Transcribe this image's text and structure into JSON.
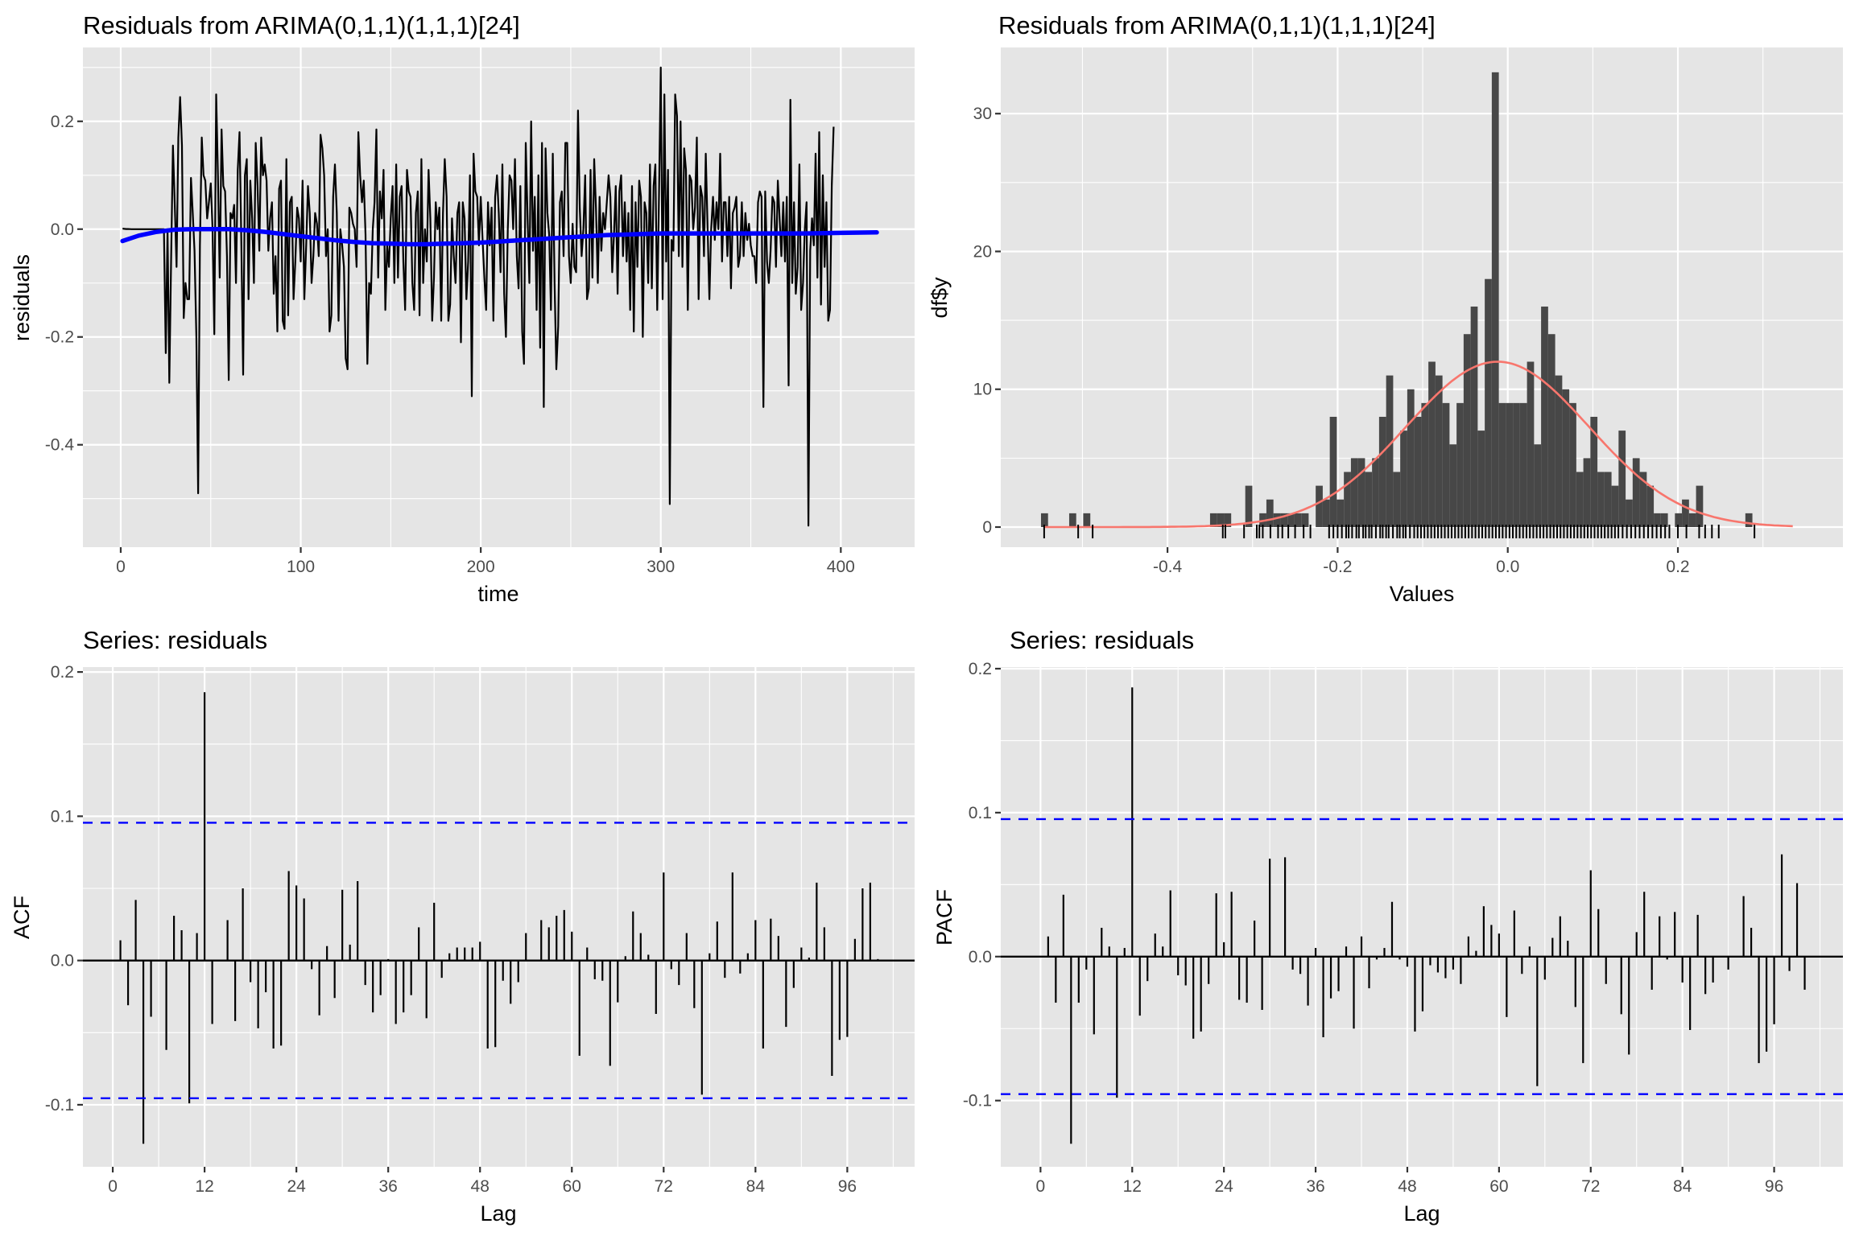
{
  "page": {
    "background": "#ffffff"
  },
  "chart_data": [
    {
      "id": "residual-series",
      "type": "line",
      "title": "Residuals from ARIMA(0,1,1)(1,1,1)[24]",
      "xlabel": "time",
      "ylabel": "residuals",
      "xlim": [
        -21,
        441
      ],
      "ylim": [
        -0.59,
        0.337
      ],
      "xticks": [
        0,
        100,
        200,
        300,
        400
      ],
      "xtick_labels": [
        "0",
        "100",
        "200",
        "300",
        "400"
      ],
      "xminor": [
        50,
        150,
        250,
        350
      ],
      "yticks": [
        0.2,
        0.0,
        -0.2,
        -0.4
      ],
      "ytick_labels": [
        "0.2",
        "0.0",
        "-0.2",
        "-0.4"
      ],
      "yminor": [
        0.3,
        0.1,
        -0.1,
        -0.3,
        -0.5
      ],
      "grid": true,
      "line_color": "#000000",
      "smooth_color": "#0000ff",
      "x_start": 1,
      "values": [
        0.001,
        0.0005,
        0.0003,
        0.0002,
        0.0001,
        0.0,
        0.0,
        0.0,
        0.0,
        0.0,
        0.0,
        0.0,
        0.0,
        0.0,
        0.0,
        0.0,
        0.0,
        0.0,
        0.0,
        0.0,
        0.0,
        0.0,
        0.0,
        0.0,
        -0.23,
        0.0,
        -0.285,
        -0.05,
        0.155,
        0.05,
        -0.07,
        0.17,
        0.245,
        0.155,
        -0.165,
        -0.1,
        -0.13,
        -0.13,
        0.095,
        0.03,
        -0.04,
        -0.2,
        -0.49,
        -0.03,
        0.17,
        0.1,
        0.09,
        0.02,
        0.05,
        0.085,
        0.0,
        -0.195,
        0.25,
        0.1,
        -0.09,
        0.185,
        0.08,
        0.07,
        -0.05,
        -0.28,
        0.03,
        0.02,
        0.045,
        -0.1,
        0.11,
        0.18,
        -0.03,
        -0.27,
        0.1,
        0.13,
        -0.13,
        0.09,
        0.02,
        -0.1,
        0.16,
        0.08,
        -0.04,
        0.17,
        0.1,
        0.12,
        0.09,
        -0.04,
        0.02,
        0.05,
        -0.12,
        -0.05,
        -0.19,
        0.075,
        0.09,
        -0.17,
        -0.185,
        0.13,
        -0.16,
        0.05,
        0.06,
        -0.13,
        -0.06,
        0.04,
        0.02,
        -0.06,
        0.09,
        -0.13,
        -0.03,
        0.08,
        0.03,
        -0.1,
        -0.05,
        0.03,
        0.01,
        -0.05,
        0.175,
        0.15,
        0.1,
        -0.05,
        0.0,
        -0.19,
        -0.16,
        0.06,
        0.12,
        0.03,
        -0.17,
        0.0,
        -0.03,
        -0.07,
        -0.24,
        -0.26,
        0.04,
        0.03,
        0.01,
        0.0,
        -0.07,
        0.18,
        0.1,
        0.05,
        0.09,
        -0.01,
        -0.25,
        -0.1,
        -0.12,
        0.0,
        0.05,
        0.185,
        -0.09,
        0.07,
        0.02,
        0.11,
        -0.15,
        -0.03,
        -0.07,
        0.02,
        0.08,
        -0.1,
        0.12,
        -0.09,
        0.06,
        0.08,
        -0.06,
        -0.15,
        0.11,
        0.07,
        0.06,
        -0.1,
        -0.15,
        0.03,
        0.07,
        -0.16,
        0.13,
        -0.1,
        0.0,
        -0.06,
        0.11,
        0.02,
        -0.17,
        -0.09,
        0.05,
        0.0,
        0.04,
        -0.17,
        0.03,
        0.13,
        0.06,
        -0.17,
        -0.14,
        0.02,
        -0.05,
        -0.1,
        0.03,
        0.05,
        -0.21,
        0.05,
        0.02,
        -0.13,
        -0.06,
        0.1,
        -0.31,
        0.14,
        0.07,
        0.06,
        -0.03,
        0.06,
        -0.02,
        -0.09,
        -0.15,
        0.05,
        -0.03,
        0.04,
        -0.17,
        0.06,
        0.1,
        0.03,
        -0.08,
        0.12,
        -0.12,
        -0.2,
        0.0,
        0.1,
        0.09,
        0.0,
        0.13,
        -0.05,
        -0.11,
        0.08,
        -0.19,
        -0.25,
        0.16,
        0.02,
        -0.1,
        0.2,
        -0.04,
        0.06,
        -0.15,
        0.1,
        -0.22,
        0.16,
        -0.33,
        0.15,
        0.03,
        -0.01,
        -0.15,
        0.14,
        -0.1,
        -0.26,
        -0.18,
        0.05,
        0.07,
        -0.05,
        0.16,
        0.16,
        -0.05,
        -0.1,
        0.01,
        -0.07,
        -0.08,
        0.22,
        0.04,
        -0.05,
        0.0,
        0.1,
        -0.13,
        -0.11,
        0.11,
        -0.09,
        0.13,
        0.04,
        -0.1,
        0.06,
        -0.04,
        0.03,
        0.0,
        0.05,
        0.1,
        0.06,
        -0.08,
        -0.01,
        0.08,
        -0.12,
        0.07,
        0.1,
        -0.05,
        0.05,
        -0.06,
        0.03,
        -0.15,
        0.08,
        -0.19,
        0.05,
        -0.07,
        0.09,
        0.06,
        -0.2,
        0.05,
        0.03,
        -0.1,
        0.12,
        -0.11,
        0.08,
        0.12,
        -0.15,
        0.06,
        0.3,
        -0.13,
        0.25,
        -0.06,
        0.11,
        -0.51,
        -0.02,
        -0.04,
        0.25,
        0.21,
        -0.05,
        0.2,
        -0.07,
        0.15,
        0.11,
        -0.15,
        0.1,
        0.09,
        0.0,
        0.04,
        0.17,
        -0.13,
        0.08,
        0.06,
        -0.05,
        0.14,
        0.0,
        -0.13,
        0.0,
        0.06,
        -0.02,
        0.05,
        0.0,
        0.14,
        -0.06,
        0.05,
        0.05,
        -0.05,
        0.06,
        -0.11,
        0.03,
        0.04,
        0.06,
        -0.07,
        -0.05,
        0.05,
        -0.05,
        0.03,
        -0.02,
        0.01,
        -0.03,
        -0.05,
        -0.05,
        -0.1,
        0.05,
        0.07,
        0.06,
        -0.33,
        0.07,
        -0.06,
        -0.1,
        -0.04,
        0.06,
        0.05,
        -0.07,
        0.09,
        0.02,
        -0.05,
        0.05,
        -0.06,
        0.06,
        -0.29,
        0.24,
        -0.1,
        0.05,
        -0.12,
        -0.07,
        0.12,
        -0.15,
        -0.1,
        0.0,
        0.05,
        -0.55,
        -0.04,
        0.02,
        -0.03,
        0.14,
        -0.09,
        0.18,
        -0.14,
        0.1,
        -0.07,
        0.05,
        -0.17,
        -0.15,
        0.08,
        0.19
      ],
      "smooth": [
        [
          1,
          -0.022
        ],
        [
          10,
          -0.012
        ],
        [
          20,
          -0.005
        ],
        [
          30,
          -0.001
        ],
        [
          40,
          0.0
        ],
        [
          50,
          0.0
        ],
        [
          60,
          0.0
        ],
        [
          70,
          -0.002
        ],
        [
          80,
          -0.005
        ],
        [
          90,
          -0.009
        ],
        [
          100,
          -0.013
        ],
        [
          110,
          -0.017
        ],
        [
          120,
          -0.021
        ],
        [
          130,
          -0.024
        ],
        [
          140,
          -0.026
        ],
        [
          150,
          -0.027
        ],
        [
          160,
          -0.028
        ],
        [
          170,
          -0.028
        ],
        [
          180,
          -0.027
        ],
        [
          190,
          -0.026
        ],
        [
          200,
          -0.025
        ],
        [
          210,
          -0.023
        ],
        [
          220,
          -0.021
        ],
        [
          230,
          -0.019
        ],
        [
          240,
          -0.017
        ],
        [
          250,
          -0.015
        ],
        [
          260,
          -0.013
        ],
        [
          270,
          -0.011
        ],
        [
          280,
          -0.01
        ],
        [
          290,
          -0.009
        ],
        [
          300,
          -0.008
        ],
        [
          320,
          -0.008
        ],
        [
          340,
          -0.008
        ],
        [
          360,
          -0.008
        ],
        [
          380,
          -0.008
        ],
        [
          400,
          -0.007
        ],
        [
          420,
          -0.006
        ]
      ]
    },
    {
      "id": "residual-histogram",
      "type": "bar",
      "title": "Residuals from ARIMA(0,1,1)(1,1,1)[24]",
      "xlabel": "Values",
      "ylabel": "df$y",
      "xlim": [
        -0.596,
        0.394
      ],
      "ylim": [
        -1.46,
        34.8
      ],
      "xticks": [
        -0.4,
        -0.2,
        0.0,
        0.2
      ],
      "xtick_labels": [
        "-0.4",
        "-0.2",
        "0.0",
        "0.2"
      ],
      "xminor": [
        -0.5,
        -0.3,
        -0.1,
        0.1,
        0.3
      ],
      "yticks": [
        0,
        10,
        20,
        30
      ],
      "ytick_labels": [
        "0",
        "10",
        "20",
        "30"
      ],
      "yminor": [
        5,
        15,
        25
      ],
      "grid": true,
      "bar_color": "#474747",
      "curve_color": "#f8766d",
      "bin_width": 0.00828,
      "bin_start": -0.5487,
      "counts": [
        1,
        0,
        0,
        0,
        1,
        0,
        1,
        0,
        0,
        0,
        0,
        0,
        0,
        0,
        0,
        0,
        0,
        0,
        0,
        0,
        0,
        0,
        0,
        0,
        1,
        1,
        1,
        0,
        0,
        3,
        0,
        1,
        2,
        1,
        1,
        1,
        1,
        1,
        0,
        3,
        2,
        8,
        2,
        4,
        5,
        5,
        4,
        5,
        8,
        11,
        4,
        7,
        10,
        8,
        9,
        12,
        11,
        9,
        6,
        9,
        14,
        16,
        7,
        18,
        33,
        9,
        9,
        9,
        9,
        12,
        6,
        16,
        14,
        11,
        10,
        9,
        4,
        5,
        8,
        4,
        4,
        3,
        7,
        2,
        5,
        4,
        3,
        1,
        1,
        0,
        1,
        2,
        1,
        3,
        0,
        0,
        0,
        0,
        0,
        0,
        1
      ],
      "normal_curve": {
        "mean": -0.012,
        "sd": 0.1075,
        "peak": 12.0,
        "x_from": -0.545,
        "x_to": 0.335
      },
      "rug": [
        -0.545,
        -0.505,
        -0.488,
        -0.335,
        -0.332,
        -0.31,
        -0.295,
        -0.292,
        -0.288,
        -0.279,
        -0.27,
        -0.265,
        -0.258,
        -0.25,
        -0.24,
        -0.232,
        -0.21,
        -0.205,
        -0.2,
        -0.195,
        -0.19,
        -0.187,
        -0.183,
        -0.178,
        -0.175,
        -0.17,
        -0.167,
        -0.163,
        -0.16,
        -0.155,
        -0.15,
        -0.147,
        -0.143,
        -0.14,
        -0.135,
        -0.13,
        -0.127,
        -0.123,
        -0.12,
        -0.115,
        -0.11,
        -0.106,
        -0.102,
        -0.098,
        -0.094,
        -0.09,
        -0.086,
        -0.082,
        -0.078,
        -0.074,
        -0.07,
        -0.066,
        -0.062,
        -0.058,
        -0.054,
        -0.05,
        -0.046,
        -0.042,
        -0.038,
        -0.034,
        -0.03,
        -0.026,
        -0.022,
        -0.018,
        -0.014,
        -0.01,
        -0.006,
        -0.002,
        0.002,
        0.006,
        0.01,
        0.014,
        0.018,
        0.022,
        0.026,
        0.03,
        0.034,
        0.038,
        0.042,
        0.046,
        0.05,
        0.054,
        0.058,
        0.062,
        0.066,
        0.07,
        0.074,
        0.078,
        0.082,
        0.086,
        0.09,
        0.094,
        0.098,
        0.102,
        0.106,
        0.11,
        0.114,
        0.118,
        0.122,
        0.126,
        0.13,
        0.135,
        0.14,
        0.145,
        0.15,
        0.155,
        0.16,
        0.165,
        0.17,
        0.175,
        0.18,
        0.185,
        0.19,
        0.2,
        0.21,
        0.225,
        0.232,
        0.24,
        0.248,
        0.29
      ]
    },
    {
      "id": "acf",
      "type": "bar",
      "title": "Series: residuals",
      "xlabel": "Lag",
      "ylabel": "ACF",
      "xlim": [
        -3.9,
        104.8
      ],
      "ylim": [
        -0.143,
        0.2034
      ],
      "xticks": [
        0,
        12,
        24,
        36,
        48,
        60,
        72,
        84,
        96
      ],
      "xtick_labels": [
        "0",
        "12",
        "24",
        "36",
        "48",
        "60",
        "72",
        "84",
        "96"
      ],
      "xminor": [
        6,
        18,
        30,
        42,
        54,
        66,
        78,
        90,
        102
      ],
      "yticks": [
        0.2,
        0.1,
        0.0,
        -0.1
      ],
      "ytick_labels": [
        "0.2",
        "0.1",
        "0.0",
        "-0.1"
      ],
      "yminor": [
        0.15,
        0.05,
        -0.05
      ],
      "grid": true,
      "conf_limit": 0.0955,
      "conf_color": "#0000ff",
      "lags_start": 1,
      "values": [
        0.014,
        -0.031,
        0.042,
        -0.127,
        -0.039,
        0.0,
        -0.062,
        0.031,
        0.021,
        -0.099,
        0.019,
        0.186,
        -0.044,
        0.0,
        0.028,
        -0.042,
        0.05,
        -0.015,
        -0.047,
        -0.022,
        -0.061,
        -0.059,
        0.062,
        0.052,
        0.043,
        -0.006,
        -0.038,
        0.01,
        -0.026,
        0.049,
        0.011,
        0.055,
        -0.017,
        -0.036,
        -0.024,
        0.001,
        -0.044,
        -0.036,
        -0.024,
        0.023,
        -0.04,
        0.04,
        -0.012,
        0.005,
        0.009,
        0.009,
        0.009,
        0.013,
        -0.061,
        -0.06,
        -0.014,
        -0.03,
        -0.015,
        0.019,
        0.0,
        0.028,
        0.023,
        0.031,
        0.035,
        0.02,
        -0.066,
        0.009,
        -0.013,
        -0.014,
        -0.073,
        -0.029,
        0.003,
        0.034,
        0.019,
        0.004,
        -0.037,
        0.061,
        -0.006,
        -0.017,
        0.019,
        -0.033,
        -0.093,
        0.005,
        0.027,
        -0.012,
        0.061,
        -0.009,
        0.005,
        0.028,
        -0.061,
        0.029,
        0.017,
        -0.046,
        -0.019,
        0.009,
        0.002,
        0.054,
        0.023,
        -0.08,
        -0.055,
        -0.053,
        0.015,
        0.05,
        0.054,
        0.001
      ]
    },
    {
      "id": "pacf",
      "type": "bar",
      "title": "Series: residuals",
      "xlabel": "Lag",
      "ylabel": "PACF",
      "xlim": [
        -5.2,
        105.0
      ],
      "ylim": [
        -0.146,
        0.2011
      ],
      "xticks": [
        0,
        12,
        24,
        36,
        48,
        60,
        72,
        84,
        96
      ],
      "xtick_labels": [
        "0",
        "12",
        "24",
        "36",
        "48",
        "60",
        "72",
        "84",
        "96"
      ],
      "xminor": [
        6,
        18,
        30,
        42,
        54,
        66,
        78,
        90,
        102
      ],
      "yticks": [
        0.2,
        0.1,
        0.0,
        -0.1
      ],
      "ytick_labels": [
        "0.2",
        "0.1",
        "0.0",
        "-0.1"
      ],
      "yminor": [
        0.15,
        0.05,
        -0.05
      ],
      "grid": true,
      "conf_limit": 0.0955,
      "conf_color": "#0000ff",
      "lags_start": 1,
      "values": [
        0.014,
        -0.032,
        0.043,
        -0.13,
        -0.032,
        -0.009,
        -0.054,
        0.02,
        0.007,
        -0.098,
        0.006,
        0.187,
        -0.041,
        -0.017,
        0.016,
        0.007,
        0.046,
        -0.013,
        -0.02,
        -0.057,
        -0.052,
        -0.019,
        0.044,
        0.01,
        0.045,
        -0.03,
        -0.032,
        0.025,
        -0.037,
        0.068,
        0.0,
        0.069,
        -0.009,
        -0.012,
        -0.034,
        0.006,
        -0.056,
        -0.029,
        -0.024,
        0.007,
        -0.05,
        0.014,
        -0.022,
        -0.002,
        0.006,
        0.038,
        -0.002,
        -0.007,
        -0.052,
        -0.038,
        -0.006,
        -0.011,
        -0.015,
        -0.009,
        -0.019,
        0.014,
        0.004,
        0.035,
        0.022,
        0.016,
        -0.042,
        0.032,
        -0.012,
        0.007,
        -0.09,
        -0.016,
        0.013,
        0.028,
        0.011,
        -0.035,
        -0.074,
        0.06,
        0.033,
        -0.019,
        0.0,
        -0.04,
        -0.068,
        0.017,
        0.045,
        -0.023,
        0.028,
        -0.002,
        0.031,
        -0.018,
        -0.051,
        0.029,
        -0.026,
        -0.018,
        0.0,
        -0.009,
        0.0,
        0.042,
        0.02,
        -0.074,
        -0.066,
        -0.047,
        0.071,
        -0.01,
        0.051,
        -0.023
      ]
    }
  ]
}
